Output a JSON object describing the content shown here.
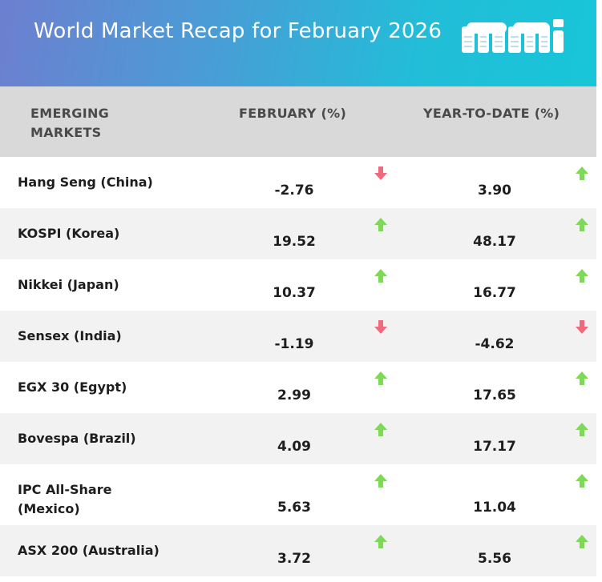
{
  "banner": {
    "title": "World Market Recap for February 2026",
    "logo": "mm-logo"
  },
  "header": {
    "col1": "EMERGING MARKETS",
    "col2": "FEBRUARY (%)",
    "col3": "YEAR-TO-DATE (%)"
  },
  "colors": {
    "up": "#7ed957",
    "down": "#f06a7d",
    "header_bg": "#d9d9d9",
    "alt_row": "#f2f2f2"
  },
  "rows": [
    {
      "name": "Hang Seng (China)",
      "feb": "-2.76",
      "feb_dir": "down",
      "ytd": "3.90",
      "ytd_dir": "up"
    },
    {
      "name": "KOSPI (Korea)",
      "feb": "19.52",
      "feb_dir": "up",
      "ytd": "48.17",
      "ytd_dir": "up"
    },
    {
      "name": "Nikkei (Japan)",
      "feb": "10.37",
      "feb_dir": "up",
      "ytd": "16.77",
      "ytd_dir": "up"
    },
    {
      "name": "Sensex (India)",
      "feb": "-1.19",
      "feb_dir": "down",
      "ytd": "-4.62",
      "ytd_dir": "down"
    },
    {
      "name": "EGX 30 (Egypt)",
      "feb": "2.99",
      "feb_dir": "up",
      "ytd": "17.65",
      "ytd_dir": "up"
    },
    {
      "name": "Bovespa (Brazil)",
      "feb": "4.09",
      "feb_dir": "up",
      "ytd": "17.17",
      "ytd_dir": "up"
    },
    {
      "name": "IPC All-Share (Mexico)",
      "feb": "5.63",
      "feb_dir": "up",
      "ytd": "11.04",
      "ytd_dir": "up"
    },
    {
      "name": "ASX 200 (Australia)",
      "feb": "3.72",
      "feb_dir": "up",
      "ytd": "5.56",
      "ytd_dir": "up"
    }
  ]
}
